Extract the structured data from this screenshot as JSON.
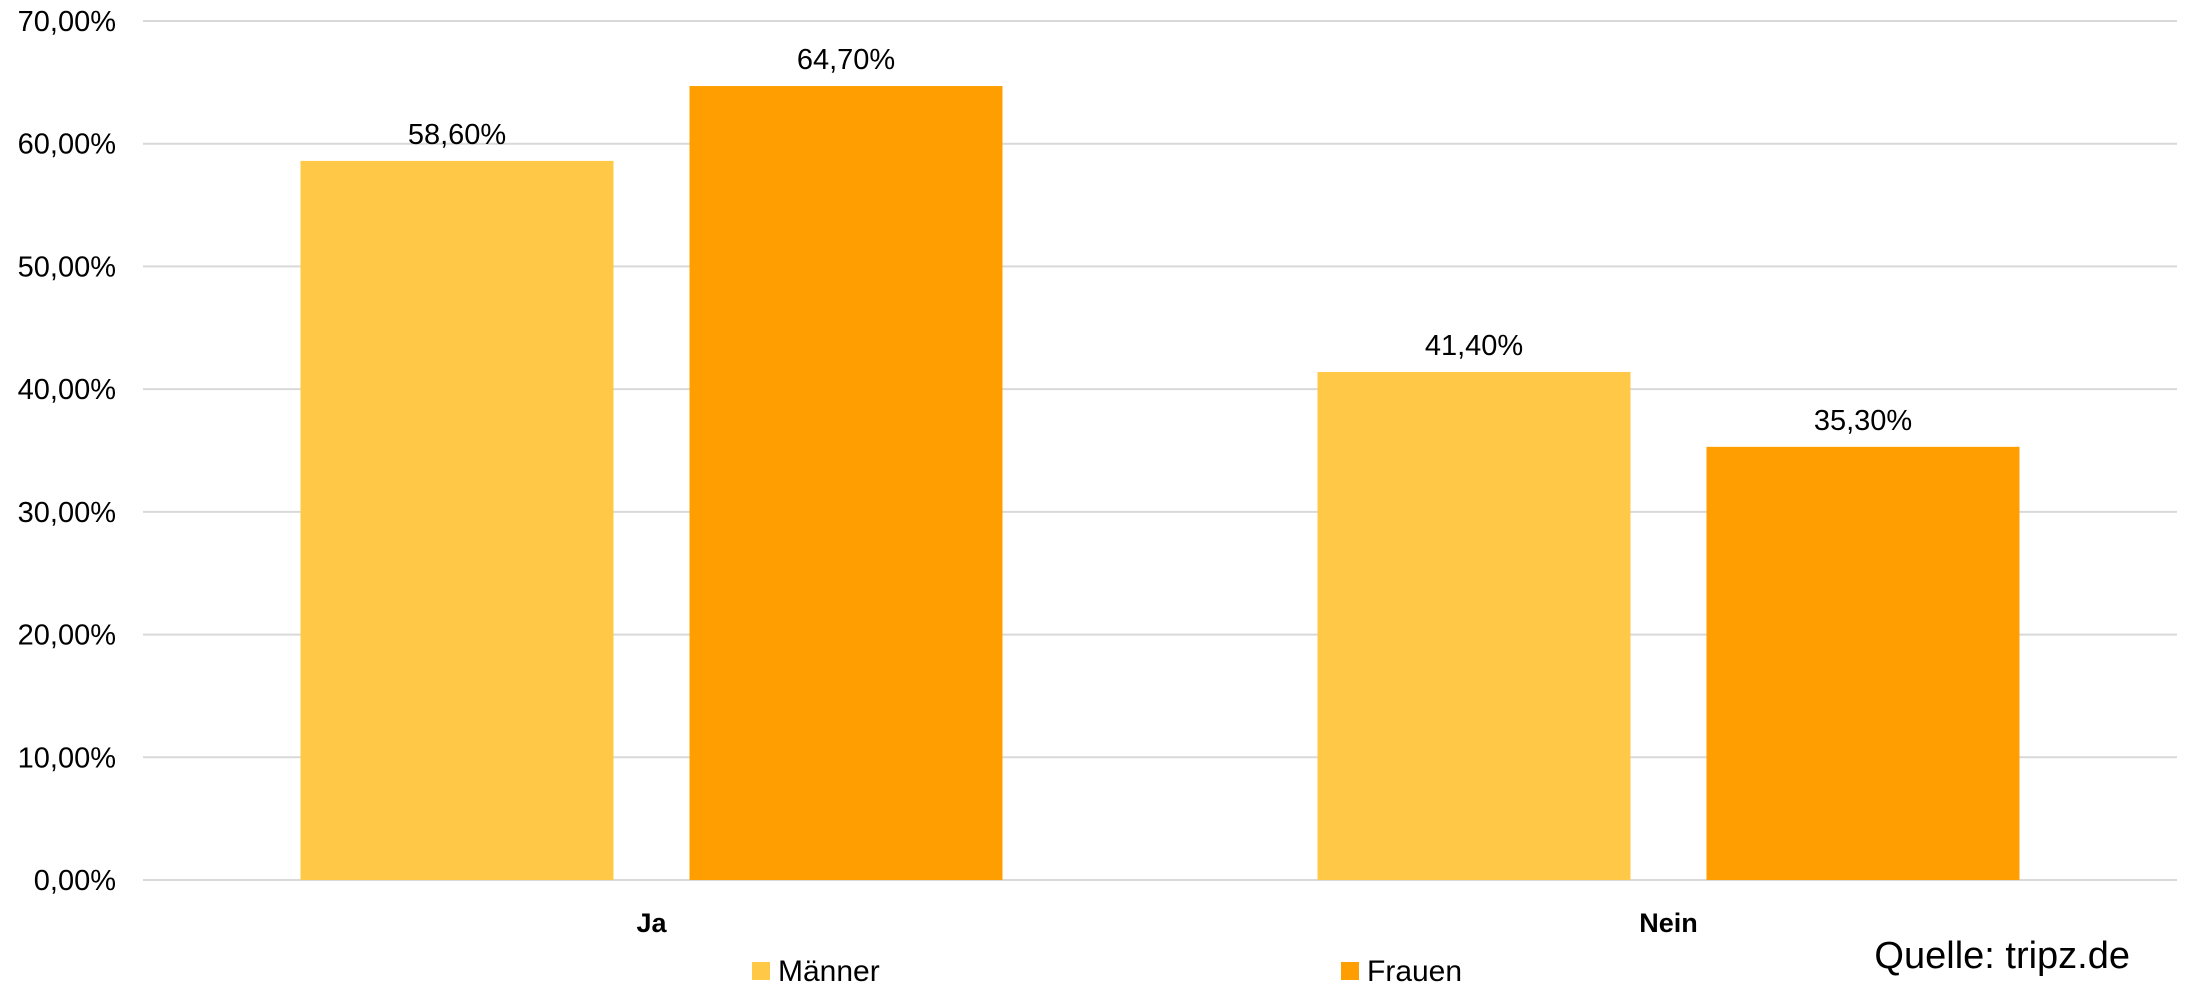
{
  "chart_data": {
    "type": "bar",
    "categories": [
      "Ja",
      "Nein"
    ],
    "series": [
      {
        "name": "Männer",
        "values": [
          58.6,
          41.4
        ],
        "labels": [
          "58,60%",
          "41,40%"
        ],
        "color": "#FFC947"
      },
      {
        "name": "Frauen",
        "values": [
          64.7,
          35.3
        ],
        "labels": [
          "64,70%",
          "35,30%"
        ],
        "color": "#FF9E00"
      }
    ],
    "ylim": [
      0,
      70
    ],
    "yticks": [
      0,
      10,
      20,
      30,
      40,
      50,
      60,
      70
    ],
    "ytick_labels": [
      "0,00%",
      "10,00%",
      "20,00%",
      "30,00%",
      "40,00%",
      "50,00%",
      "60,00%",
      "70,00%"
    ],
    "grid": true,
    "gridline_color": "#D9D9D9",
    "legend_position": "bottom",
    "title": "",
    "xlabel": "",
    "ylabel": ""
  },
  "source": "Quelle: tripz.de"
}
